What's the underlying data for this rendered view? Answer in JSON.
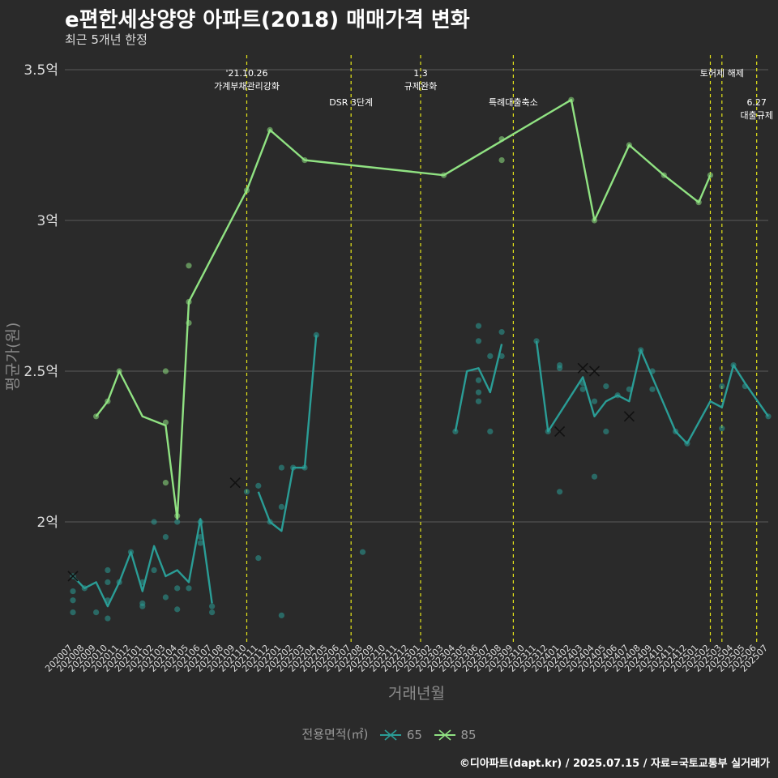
{
  "title": "e편한세상양양 아파트(2018) 매매가격 변화",
  "subtitle": "최근 5개년 한정",
  "caption": "©디아파트(dapt.kr) / 2025.07.15 / 자료=국토교통부 실거래가",
  "colors": {
    "background": "#2a2a2a",
    "s65": "#2a9d96",
    "s85": "#90e282",
    "vline": "#e6e619",
    "grid": "#5a5a5a"
  },
  "chart_data": {
    "type": "line",
    "xlabel": "거래년월",
    "ylabel": "평균가(원)",
    "ylim": [
      1.6,
      3.55
    ],
    "yticks": [
      2,
      2.5,
      3,
      3.5
    ],
    "ytick_labels": [
      "2억",
      "2.5억",
      "3억",
      "3.5억"
    ],
    "categories": [
      "202007",
      "202008",
      "202009",
      "202010",
      "202011",
      "202012",
      "202101",
      "202102",
      "202103",
      "202104",
      "202105",
      "202106",
      "202107",
      "202108",
      "202109",
      "202110",
      "202111",
      "202112",
      "202201",
      "202202",
      "202203",
      "202204",
      "202205",
      "202206",
      "202207",
      "202208",
      "202209",
      "202210",
      "202211",
      "202212",
      "202301",
      "202302",
      "202303",
      "202304",
      "202305",
      "202306",
      "202307",
      "202308",
      "202309",
      "202310",
      "202311",
      "202312",
      "202401",
      "202402",
      "202403",
      "202404",
      "202405",
      "202406",
      "202407",
      "202408",
      "202409",
      "202410",
      "202411",
      "202412",
      "202501",
      "202502",
      "202503",
      "202504",
      "202505",
      "202506",
      "202507"
    ],
    "legend_title": "전용면적(㎡)",
    "series": [
      {
        "name": "65",
        "line": [
          [
            0,
            1.82
          ],
          [
            1,
            1.78
          ],
          [
            2,
            1.8
          ],
          [
            3,
            1.72
          ],
          [
            4,
            1.8
          ],
          [
            5,
            1.9
          ],
          [
            6,
            1.77
          ],
          [
            7,
            1.92
          ],
          [
            8,
            1.82
          ],
          [
            9,
            1.84
          ],
          [
            10,
            1.8
          ],
          [
            11,
            2.01
          ],
          [
            12,
            1.73
          ],
          null,
          [
            16,
            2.1
          ],
          [
            17,
            2.0
          ],
          [
            18,
            1.97
          ],
          [
            19,
            2.18
          ],
          [
            20,
            2.18
          ],
          [
            21,
            2.62
          ],
          null,
          [
            33,
            2.3
          ],
          [
            34,
            2.5
          ],
          [
            35,
            2.51
          ],
          [
            36,
            2.43
          ],
          [
            37,
            2.59
          ],
          null,
          [
            40,
            2.6
          ],
          [
            41,
            2.3
          ],
          [
            44,
            2.48
          ],
          [
            45,
            2.35
          ],
          [
            46,
            2.4
          ],
          [
            47,
            2.42
          ],
          [
            48,
            2.4
          ],
          [
            49,
            2.57
          ],
          [
            52,
            2.3
          ],
          [
            53,
            2.26
          ],
          [
            55,
            2.4
          ],
          [
            56,
            2.38
          ],
          [
            57,
            2.52
          ],
          [
            58,
            2.46
          ],
          [
            60,
            2.35
          ]
        ],
        "points": [
          [
            0,
            1.77
          ],
          [
            0,
            1.74
          ],
          [
            0,
            1.7
          ],
          [
            0,
            1.82
          ],
          [
            1,
            1.78
          ],
          [
            2,
            1.7
          ],
          [
            3,
            1.84
          ],
          [
            3,
            1.8
          ],
          [
            3,
            1.74
          ],
          [
            3,
            1.68
          ],
          [
            4,
            1.8
          ],
          [
            5,
            1.9
          ],
          [
            6,
            1.8
          ],
          [
            6,
            1.73
          ],
          [
            6,
            1.72
          ],
          [
            7,
            2.0
          ],
          [
            7,
            1.84
          ],
          [
            8,
            1.95
          ],
          [
            8,
            1.75
          ],
          [
            9,
            2.0
          ],
          [
            9,
            1.78
          ],
          [
            9,
            1.71
          ],
          [
            10,
            1.78
          ],
          [
            11,
            2.0
          ],
          [
            11,
            1.95
          ],
          [
            11,
            1.93
          ],
          [
            12,
            1.72
          ],
          [
            12,
            1.7
          ],
          [
            15,
            2.1
          ],
          [
            16,
            2.12
          ],
          [
            16,
            1.88
          ],
          [
            17,
            2.0
          ],
          [
            18,
            2.18
          ],
          [
            18,
            2.05
          ],
          [
            18,
            1.69
          ],
          [
            19,
            2.18
          ],
          [
            20,
            2.18
          ],
          [
            21,
            2.62
          ],
          [
            25,
            1.9
          ],
          [
            33,
            2.3
          ],
          [
            35,
            2.65
          ],
          [
            35,
            2.6
          ],
          [
            35,
            2.47
          ],
          [
            35,
            2.43
          ],
          [
            35,
            2.4
          ],
          [
            36,
            2.55
          ],
          [
            36,
            2.3
          ],
          [
            37,
            2.63
          ],
          [
            37,
            2.55
          ],
          [
            40,
            2.6
          ],
          [
            41,
            2.3
          ],
          [
            42,
            2.52
          ],
          [
            42,
            2.51
          ],
          [
            42,
            2.1
          ],
          [
            44,
            2.46
          ],
          [
            44,
            2.44
          ],
          [
            45,
            2.4
          ],
          [
            45,
            2.15
          ],
          [
            46,
            2.45
          ],
          [
            46,
            2.3
          ],
          [
            47,
            2.42
          ],
          [
            48,
            2.44
          ],
          [
            49,
            2.57
          ],
          [
            50,
            2.5
          ],
          [
            50,
            2.44
          ],
          [
            52,
            2.3
          ],
          [
            53,
            2.26
          ],
          [
            56,
            2.45
          ],
          [
            56,
            2.31
          ],
          [
            57,
            2.52
          ],
          [
            58,
            2.45
          ],
          [
            60,
            2.35
          ]
        ],
        "cancelled": [
          [
            0,
            1.82
          ],
          [
            14,
            2.13
          ],
          [
            42,
            2.3
          ],
          [
            44,
            2.51
          ],
          [
            45,
            2.5
          ],
          [
            48,
            2.35
          ]
        ]
      },
      {
        "name": "85",
        "line": [
          [
            2,
            2.35
          ],
          [
            3,
            2.4
          ],
          [
            4,
            2.5
          ],
          [
            6,
            2.35
          ],
          [
            8,
            2.32
          ],
          [
            9,
            2.01
          ],
          [
            10,
            2.73
          ],
          [
            15,
            3.1
          ],
          [
            17,
            3.3
          ],
          [
            20,
            3.2
          ],
          [
            32,
            3.15
          ],
          [
            43,
            3.4
          ],
          [
            45,
            3.0
          ],
          [
            48,
            3.25
          ],
          [
            51,
            3.15
          ],
          [
            54,
            3.06
          ],
          [
            55,
            3.15
          ]
        ],
        "points": [
          [
            2,
            2.35
          ],
          [
            3,
            2.4
          ],
          [
            4,
            2.5
          ],
          [
            8,
            2.5
          ],
          [
            8,
            2.33
          ],
          [
            8,
            2.13
          ],
          [
            9,
            2.02
          ],
          [
            10,
            2.85
          ],
          [
            10,
            2.73
          ],
          [
            10,
            2.66
          ],
          [
            15,
            3.1
          ],
          [
            17,
            3.3
          ],
          [
            20,
            3.2
          ],
          [
            32,
            3.15
          ],
          [
            37,
            3.27
          ],
          [
            37,
            3.2
          ],
          [
            43,
            3.4
          ],
          [
            45,
            3.0
          ],
          [
            48,
            3.25
          ],
          [
            51,
            3.15
          ],
          [
            54,
            3.06
          ],
          [
            55,
            3.15
          ]
        ],
        "cancelled": []
      }
    ],
    "events": [
      {
        "x": 15.0,
        "line1": "'21.10.26",
        "line2": "가계부채관리강화",
        "level": 1
      },
      {
        "x": 24.0,
        "line1": "",
        "line2": "DSR 3단계",
        "level": 2
      },
      {
        "x": 30.0,
        "line1": "1.3",
        "line2": "규제완화",
        "level": 1
      },
      {
        "x": 38.0,
        "line1": "",
        "line2": "특례대출축소",
        "level": 2
      },
      {
        "x": 55.0,
        "line1": "",
        "line2": "",
        "level": 0
      },
      {
        "x": 56.0,
        "line1": "",
        "line2": "토허제 해제",
        "level": 1
      },
      {
        "x": 59.0,
        "line1": "6.27",
        "line2": "대출규제",
        "level": 2
      }
    ]
  }
}
